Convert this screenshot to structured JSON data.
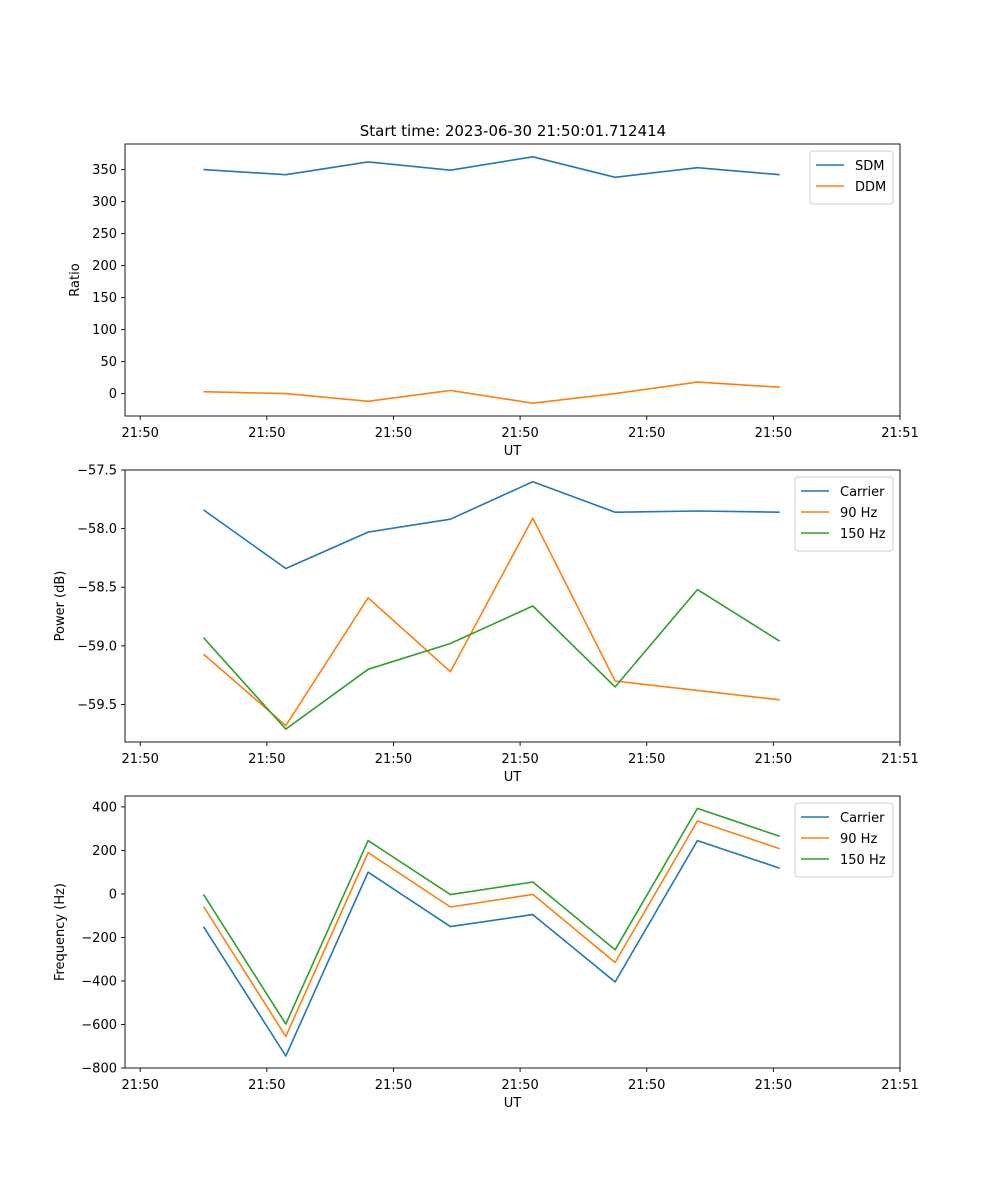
{
  "figure": {
    "title": "Start time: 2023-06-30 21:50:01.712414"
  },
  "chart_data": [
    {
      "type": "line",
      "title": "Start time: 2023-06-30 21:50:01.712414",
      "xlabel": "UT",
      "ylabel": "Ratio",
      "x_tick_labels": [
        "21:50",
        "21:50",
        "21:50",
        "21:50",
        "21:50",
        "21:50",
        "21:51"
      ],
      "x_ticks": [
        0,
        1,
        2,
        3,
        4,
        5,
        6
      ],
      "xlim": [
        -0.12,
        6.0
      ],
      "x": [
        0.5,
        1.15,
        1.8,
        2.45,
        3.1,
        3.75,
        4.4,
        5.05
      ],
      "ylim": [
        -35,
        390
      ],
      "y_ticks": [
        0,
        50,
        100,
        150,
        200,
        250,
        300,
        350
      ],
      "y_tick_labels": [
        "0",
        "50",
        "100",
        "150",
        "200",
        "250",
        "300",
        "350"
      ],
      "legend": "top-right",
      "series": [
        {
          "name": "SDM",
          "color": "#1f77b4",
          "values": [
            350,
            342,
            362,
            349,
            370,
            338,
            353,
            342
          ]
        },
        {
          "name": "DDM",
          "color": "#ff7f0e",
          "values": [
            3,
            0,
            -12,
            5,
            -15,
            0,
            18,
            10
          ]
        }
      ]
    },
    {
      "type": "line",
      "title": "",
      "xlabel": "UT",
      "ylabel": "Power (dB)",
      "x_tick_labels": [
        "21:50",
        "21:50",
        "21:50",
        "21:50",
        "21:50",
        "21:50",
        "21:51"
      ],
      "x_ticks": [
        0,
        1,
        2,
        3,
        4,
        5,
        6
      ],
      "xlim": [
        -0.12,
        6.0
      ],
      "x": [
        0.5,
        1.15,
        1.8,
        2.45,
        3.1,
        3.75,
        4.4,
        5.05
      ],
      "ylim": [
        -59.82,
        -57.5
      ],
      "y_ticks": [
        -57.5,
        -58.0,
        -58.5,
        -59.0,
        -59.5
      ],
      "y_tick_labels": [
        "−57.5",
        "−58.0",
        "−58.5",
        "−59.0",
        "−59.5"
      ],
      "legend": "top-right",
      "series": [
        {
          "name": "Carrier",
          "color": "#1f77b4",
          "values": [
            -57.84,
            -58.34,
            -58.03,
            -57.92,
            -57.6,
            -57.86,
            -57.85,
            -57.86
          ]
        },
        {
          "name": "90 Hz",
          "color": "#ff7f0e",
          "values": [
            -59.07,
            -59.68,
            -58.59,
            -59.22,
            -57.91,
            -59.3,
            -59.38,
            -59.46
          ]
        },
        {
          "name": "150 Hz",
          "color": "#2ca02c",
          "values": [
            -58.93,
            -59.71,
            -59.2,
            -58.98,
            -58.66,
            -59.35,
            -58.52,
            -58.96
          ]
        }
      ]
    },
    {
      "type": "line",
      "title": "",
      "xlabel": "UT",
      "ylabel": "Frequency (Hz)",
      "x_tick_labels": [
        "21:50",
        "21:50",
        "21:50",
        "21:50",
        "21:50",
        "21:50",
        "21:51"
      ],
      "x_ticks": [
        0,
        1,
        2,
        3,
        4,
        5,
        6
      ],
      "xlim": [
        -0.12,
        6.0
      ],
      "x": [
        0.5,
        1.15,
        1.8,
        2.45,
        3.1,
        3.75,
        4.4,
        5.05
      ],
      "ylim": [
        -800,
        450
      ],
      "y_ticks": [
        400,
        200,
        0,
        -200,
        -400,
        -600,
        -800
      ],
      "y_tick_labels": [
        "400",
        "200",
        "0",
        "−200",
        "−400",
        "−600",
        "−800"
      ],
      "legend": "top-right",
      "series": [
        {
          "name": "Carrier",
          "color": "#1f77b4",
          "values": [
            -150,
            -745,
            100,
            -150,
            -95,
            -405,
            245,
            118
          ]
        },
        {
          "name": "90 Hz",
          "color": "#ff7f0e",
          "values": [
            -58,
            -655,
            190,
            -60,
            -2,
            -315,
            335,
            208
          ]
        },
        {
          "name": "150 Hz",
          "color": "#2ca02c",
          "values": [
            -2,
            -598,
            245,
            -3,
            55,
            -257,
            393,
            265
          ]
        }
      ]
    }
  ]
}
